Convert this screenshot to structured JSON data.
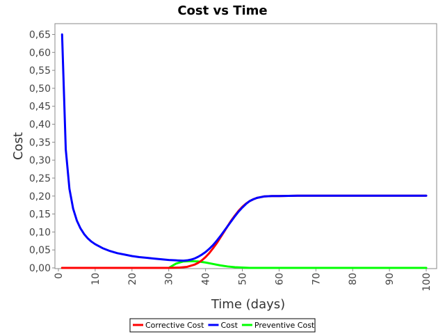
{
  "chart_data": {
    "type": "line",
    "title": "Cost vs Time",
    "xlabel": "Time (days)",
    "ylabel": "Cost",
    "xlim": [
      0,
      100
    ],
    "ylim": [
      0,
      0.68
    ],
    "x_ticks": [
      "0",
      "10",
      "20",
      "30",
      "40",
      "50",
      "60",
      "70",
      "80",
      "90",
      "100"
    ],
    "y_ticks": [
      "0,00",
      "0,05",
      "0,10",
      "0,15",
      "0,20",
      "0,25",
      "0,30",
      "0,35",
      "0,40",
      "0,45",
      "0,50",
      "0,55",
      "0,60",
      "0,65"
    ],
    "y_tick_values": [
      0,
      0.05,
      0.1,
      0.15,
      0.2,
      0.25,
      0.3,
      0.35,
      0.4,
      0.45,
      0.5,
      0.55,
      0.6,
      0.65
    ],
    "grid": false,
    "legend_position": "bottom-center",
    "series": [
      {
        "name": "Corrective Cost",
        "color": "#ff0000",
        "x": [
          1,
          5,
          10,
          15,
          20,
          25,
          30,
          33,
          35,
          37,
          38,
          39,
          40,
          41,
          42,
          43,
          44,
          45,
          46,
          47,
          48,
          49,
          50,
          51,
          52,
          53,
          54,
          55,
          56,
          58,
          60,
          65,
          70,
          80,
          90,
          100
        ],
        "y": [
          0,
          0,
          0,
          0,
          0,
          0,
          0,
          0.001,
          0.003,
          0.009,
          0.014,
          0.021,
          0.03,
          0.041,
          0.054,
          0.068,
          0.084,
          0.1,
          0.116,
          0.132,
          0.146,
          0.159,
          0.17,
          0.179,
          0.186,
          0.191,
          0.195,
          0.197,
          0.199,
          0.2,
          0.2,
          0.201,
          0.201,
          0.201,
          0.201,
          0.201
        ]
      },
      {
        "name": "Cost",
        "color": "#0000ff",
        "x": [
          1,
          2,
          3,
          4,
          5,
          6,
          7,
          8,
          9,
          10,
          12,
          14,
          16,
          18,
          20,
          22,
          24,
          26,
          28,
          30,
          32,
          34,
          35,
          36,
          37,
          38,
          39,
          40,
          41,
          42,
          43,
          44,
          45,
          46,
          47,
          48,
          49,
          50,
          51,
          52,
          53,
          54,
          55,
          56,
          58,
          60,
          65,
          70,
          80,
          90,
          100
        ],
        "y": [
          0.65,
          0.33,
          0.22,
          0.165,
          0.132,
          0.11,
          0.094,
          0.082,
          0.073,
          0.066,
          0.055,
          0.047,
          0.041,
          0.037,
          0.033,
          0.03,
          0.028,
          0.026,
          0.024,
          0.022,
          0.021,
          0.02,
          0.021,
          0.023,
          0.026,
          0.031,
          0.037,
          0.044,
          0.053,
          0.063,
          0.075,
          0.088,
          0.102,
          0.116,
          0.13,
          0.144,
          0.157,
          0.168,
          0.178,
          0.186,
          0.191,
          0.195,
          0.197,
          0.199,
          0.2,
          0.2,
          0.201,
          0.201,
          0.201,
          0.201,
          0.201
        ]
      },
      {
        "name": "Preventive Cost",
        "color": "#00ff00",
        "x": [
          1,
          5,
          10,
          15,
          20,
          25,
          30,
          32,
          34,
          36,
          38,
          40,
          42,
          44,
          46,
          48,
          50,
          52,
          55,
          60,
          70,
          80,
          90,
          100
        ],
        "y": [
          0,
          0,
          0,
          0,
          0,
          0,
          0,
          0.012,
          0.018,
          0.019,
          0.018,
          0.015,
          0.011,
          0.007,
          0.004,
          0.002,
          0.001,
          0,
          0,
          0,
          0,
          0,
          0,
          0
        ]
      }
    ]
  }
}
